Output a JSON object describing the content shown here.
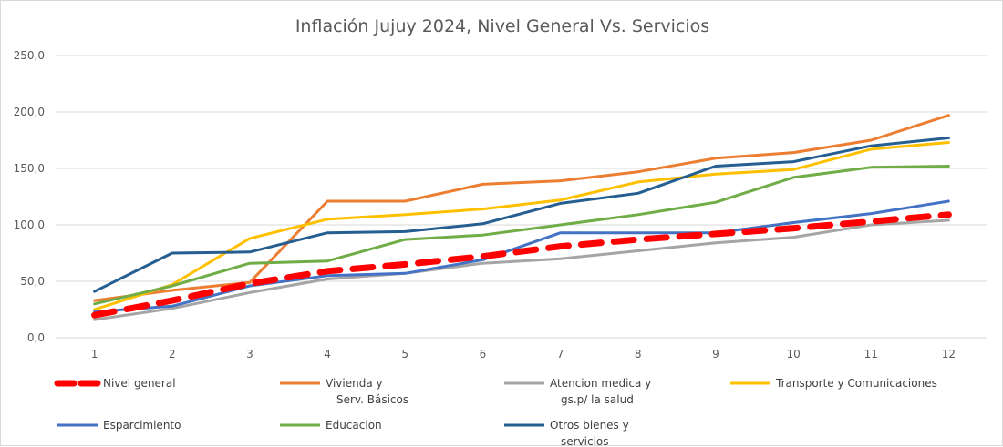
{
  "chart_data": {
    "type": "line",
    "title": "Inflación Jujuy 2024, Nivel General Vs. Servicios",
    "xlabel": "",
    "ylabel": "",
    "categories": [
      "1",
      "2",
      "3",
      "4",
      "5",
      "6",
      "7",
      "8",
      "9",
      "10",
      "11",
      "12"
    ],
    "y_ticks": [
      "0,0",
      "50,0",
      "100,0",
      "150,0",
      "200,0",
      "250,0"
    ],
    "ylim": [
      0,
      250
    ],
    "grid": "horizontal",
    "legend_position": "bottom",
    "series": [
      {
        "name": "Nivel general",
        "legend_lines": [
          "Nivel general"
        ],
        "color": "#ff0000",
        "style": "dashed-thick",
        "values": [
          20,
          33,
          48,
          59,
          65,
          72,
          81,
          87,
          92,
          97,
          103,
          109
        ]
      },
      {
        "name": "Vivienda y Serv. Básicos",
        "legend_lines": [
          "Vivienda y",
          "Serv. Básicos"
        ],
        "color": "#ed7d31",
        "style": "solid",
        "values": [
          33,
          42,
          49,
          121,
          121,
          136,
          139,
          147,
          159,
          164,
          175,
          197
        ]
      },
      {
        "name": "Atencion medica y gs.p/ la salud",
        "legend_lines": [
          "Atencion medica y",
          "gs.p/ la salud"
        ],
        "color": "#a5a5a5",
        "style": "solid",
        "values": [
          16,
          26,
          40,
          52,
          57,
          66,
          70,
          77,
          84,
          89,
          100,
          104
        ]
      },
      {
        "name": "Transporte y Comunicaciones",
        "legend_lines": [
          "Transporte   y   Comunicaciones"
        ],
        "color": "#ffc000",
        "style": "solid",
        "values": [
          25,
          47,
          88,
          105,
          109,
          114,
          122,
          138,
          145,
          149,
          167,
          173
        ]
      },
      {
        "name": "Esparcimiento",
        "legend_lines": [
          "Esparcimiento"
        ],
        "color": "#4472c4",
        "style": "solid",
        "values": [
          23,
          28,
          46,
          55,
          57,
          69,
          93,
          93,
          93,
          102,
          110,
          121
        ]
      },
      {
        "name": "Educacion",
        "legend_lines": [
          "Educacion"
        ],
        "color": "#70ad47",
        "style": "solid",
        "values": [
          30,
          46,
          66,
          68,
          87,
          91,
          100,
          109,
          120,
          142,
          151,
          152
        ]
      },
      {
        "name": "Otros bienes y servicios",
        "legend_lines": [
          "Otros bienes y",
          "servicios"
        ],
        "color": "#255e91",
        "style": "solid",
        "values": [
          41,
          75,
          76,
          93,
          94,
          101,
          119,
          128,
          152,
          156,
          170,
          177
        ]
      }
    ]
  }
}
